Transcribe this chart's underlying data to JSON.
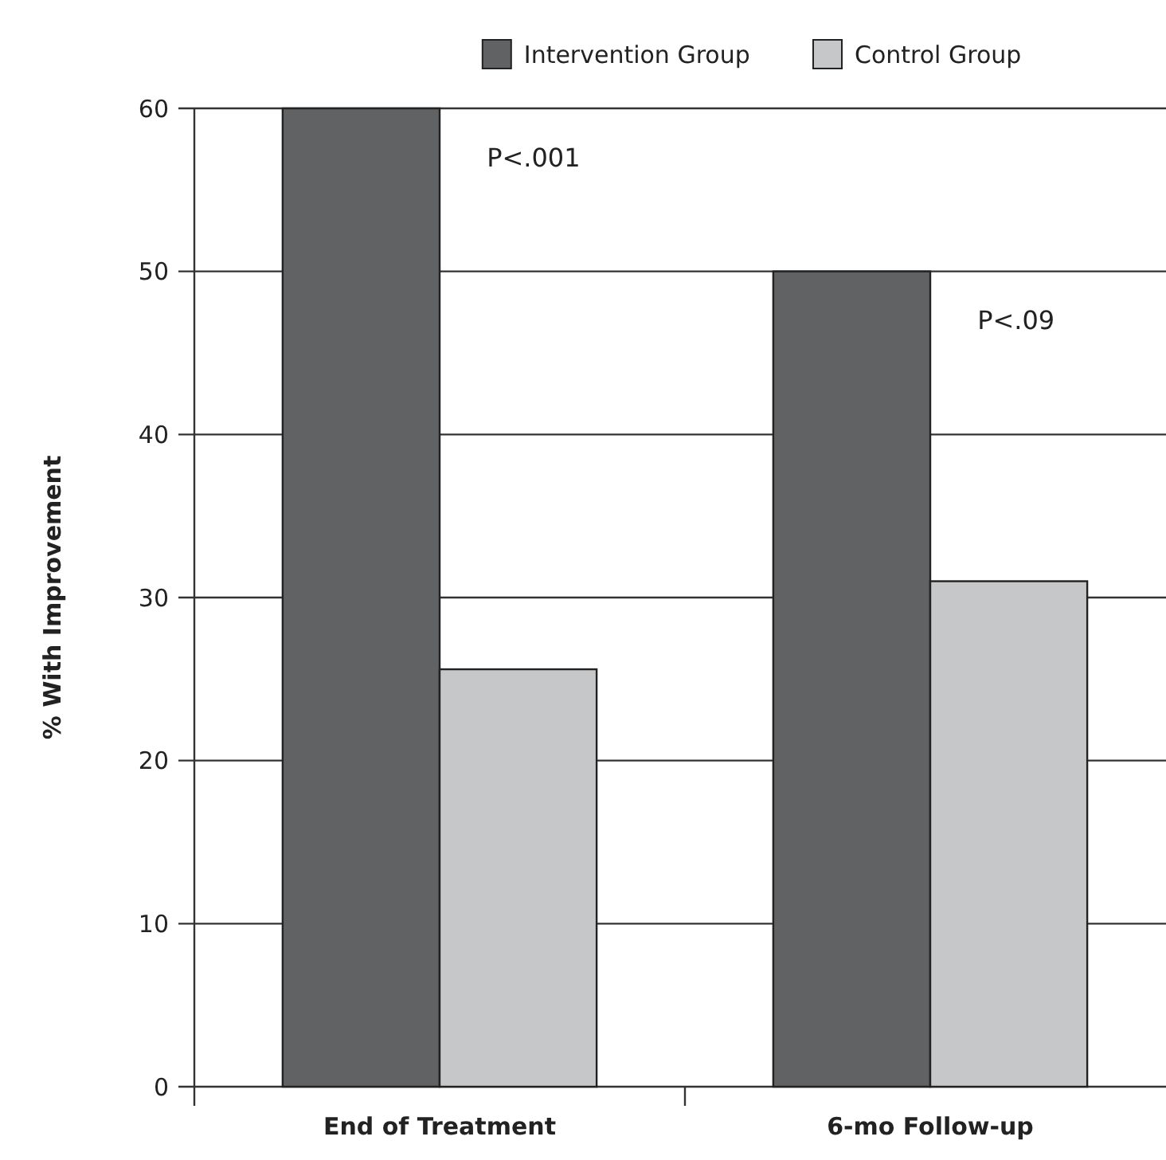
{
  "chart_data": {
    "type": "bar",
    "ylabel": "% With Improvement",
    "categories": [
      "End of Treatment",
      "6-mo Follow-up"
    ],
    "series": [
      {
        "name": "Intervention Group",
        "color": "#616264",
        "values": [
          60,
          50
        ]
      },
      {
        "name": "Control Group",
        "color": "#c6c7c9",
        "values": [
          25.6,
          31
        ]
      }
    ],
    "ylim": [
      0,
      60
    ],
    "yticks": [
      0,
      10,
      20,
      30,
      40,
      50,
      60
    ],
    "grid": "y",
    "legend": "top",
    "annotations": [
      {
        "text": "P<.001",
        "x": "End of Treatment",
        "y": 57
      },
      {
        "text": "P<.09",
        "x": "6-mo Follow-up",
        "y": 47
      }
    ]
  }
}
